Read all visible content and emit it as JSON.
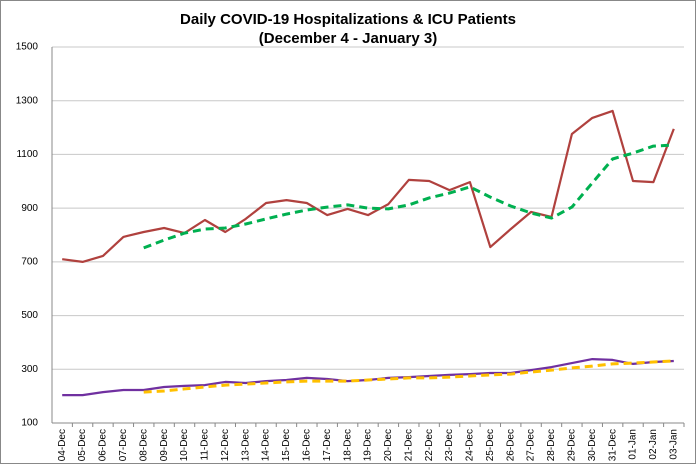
{
  "chart_data": {
    "type": "line",
    "title": "Daily COVID-19 Hospitalizations & ICU Patients",
    "subtitle": "(December 4 - January 3)",
    "categories": [
      "04-Dec",
      "05-Dec",
      "06-Dec",
      "07-Dec",
      "08-Dec",
      "09-Dec",
      "10-Dec",
      "11-Dec",
      "12-Dec",
      "13-Dec",
      "14-Dec",
      "15-Dec",
      "16-Dec",
      "17-Dec",
      "18-Dec",
      "19-Dec",
      "20-Dec",
      "21-Dec",
      "22-Dec",
      "23-Dec",
      "24-Dec",
      "25-Dec",
      "26-Dec",
      "27-Dec",
      "28-Dec",
      "29-Dec",
      "30-Dec",
      "31-Dec",
      "01-Jan",
      "02-Jan",
      "03-Jan"
    ],
    "series": [
      {
        "color": "#b0413e",
        "dashed": false,
        "values": [
          710,
          700,
          722,
          793,
          811,
          826,
          807,
          856,
          811,
          860,
          919,
          930,
          919,
          874,
          897,
          874,
          915,
          1005,
          1001,
          967,
          997,
          755,
          822,
          886,
          867,
          1176,
          1236,
          1262,
          1001,
          997,
          1195
        ]
      },
      {
        "color": "#00b050",
        "dashed": true,
        "values": [
          null,
          null,
          null,
          null,
          752,
          781,
          807,
          822,
          826,
          841,
          860,
          878,
          893,
          904,
          912,
          900,
          897,
          912,
          938,
          956,
          979,
          941,
          908,
          882,
          863,
          904,
          994,
          1083,
          1105,
          1131,
          1135
        ]
      },
      {
        "color": "#7030a0",
        "dashed": false,
        "values": [
          204,
          204,
          215,
          223,
          223,
          234,
          238,
          241,
          253,
          249,
          256,
          260,
          268,
          264,
          256,
          260,
          268,
          271,
          275,
          279,
          282,
          286,
          286,
          297,
          308,
          323,
          338,
          335,
          320,
          327,
          331
        ]
      },
      {
        "color": "#ffc000",
        "dashed": true,
        "values": [
          null,
          null,
          null,
          null,
          215,
          219,
          227,
          234,
          241,
          245,
          249,
          253,
          256,
          256,
          256,
          260,
          264,
          268,
          268,
          271,
          275,
          279,
          282,
          290,
          297,
          305,
          312,
          320,
          323,
          327,
          331
        ]
      }
    ],
    "ylim": [
      100,
      1500
    ],
    "yticks": [
      100,
      300,
      500,
      700,
      900,
      1100,
      1300,
      1500
    ],
    "grid": true
  }
}
